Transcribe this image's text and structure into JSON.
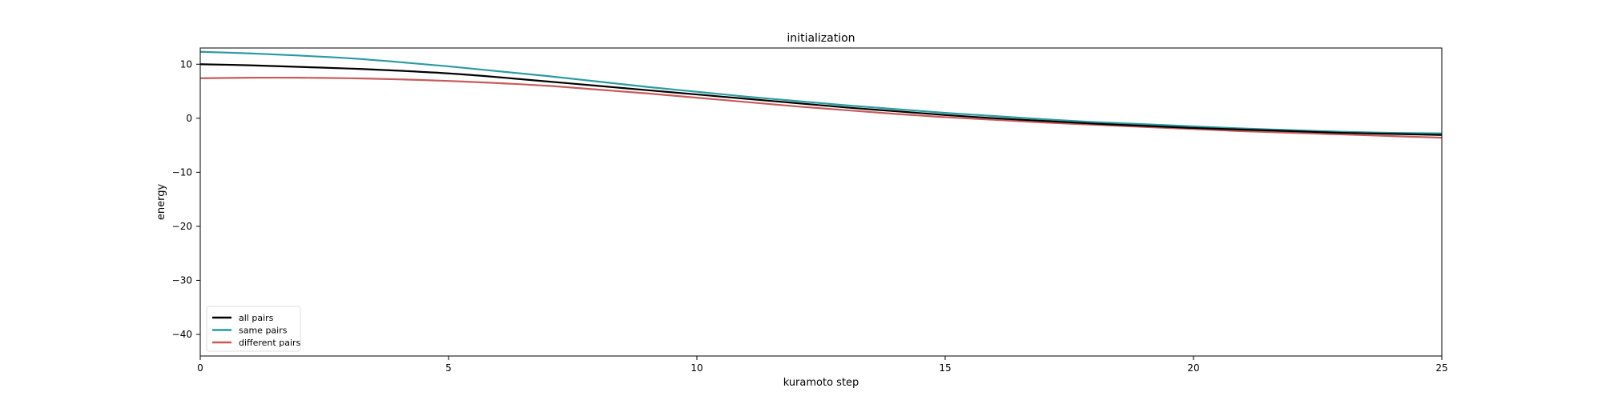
{
  "chart_data": {
    "type": "line",
    "title": "initialization",
    "xlabel": "kuramoto step",
    "ylabel": "energy",
    "xlim": [
      0,
      25
    ],
    "ylim": [
      -44,
      13
    ],
    "xticks": [
      0,
      5,
      10,
      15,
      20,
      25
    ],
    "yticks": [
      -40,
      -30,
      -20,
      -10,
      0,
      10
    ],
    "grid": false,
    "legend_position": "lower-left",
    "x": [
      0,
      1,
      2,
      3,
      4,
      5,
      6,
      7,
      8,
      9,
      10,
      11,
      12,
      13,
      14,
      15,
      16,
      17,
      18,
      19,
      20,
      21,
      22,
      23,
      24,
      25
    ],
    "series": [
      {
        "name": "all pairs",
        "color": "#000000",
        "values": [
          10.0,
          9.8,
          9.5,
          9.2,
          8.8,
          8.3,
          7.6,
          6.8,
          6.0,
          5.2,
          4.4,
          3.6,
          2.8,
          2.0,
          1.3,
          0.6,
          0.0,
          -0.5,
          -1.0,
          -1.4,
          -1.8,
          -2.1,
          -2.4,
          -2.7,
          -2.9,
          -3.1
        ]
      },
      {
        "name": "same pairs",
        "color": "#2a9aa0",
        "values": [
          12.3,
          12.0,
          11.6,
          11.1,
          10.4,
          9.6,
          8.7,
          7.8,
          6.8,
          5.8,
          4.9,
          4.0,
          3.2,
          2.4,
          1.7,
          1.0,
          0.4,
          -0.2,
          -0.7,
          -1.1,
          -1.5,
          -1.9,
          -2.2,
          -2.5,
          -2.7,
          -2.8
        ]
      },
      {
        "name": "different pairs",
        "color": "#c85a5a",
        "values": [
          7.4,
          7.5,
          7.5,
          7.4,
          7.2,
          6.9,
          6.5,
          6.0,
          5.3,
          4.6,
          3.8,
          3.0,
          2.2,
          1.5,
          0.8,
          0.2,
          -0.3,
          -0.8,
          -1.2,
          -1.6,
          -2.0,
          -2.4,
          -2.7,
          -3.0,
          -3.3,
          -3.6
        ]
      }
    ]
  }
}
